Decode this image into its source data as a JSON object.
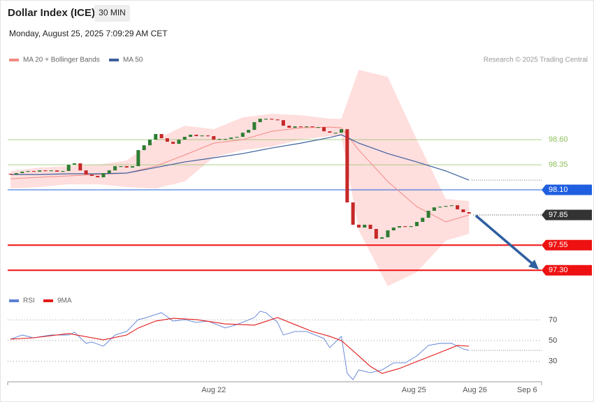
{
  "header": {
    "title": "Dollar Index (ICE)",
    "interval": "30 MIN",
    "timestamp": "Monday, August 25, 2025 7:09:29 AM CET"
  },
  "chart_data": [
    {
      "type": "candlestick",
      "credit": "Research © 2025 Trading Central",
      "xlim": [
        -0.5,
        91.5
      ],
      "ylim": [
        97.1,
        99.33
      ],
      "up_color": "#2e7d32",
      "down_color": "#c62828",
      "open": [
        98.26,
        98.253,
        98.267,
        98.281,
        98.288,
        98.281,
        98.294,
        98.288,
        98.294,
        98.281,
        98.288,
        98.35,
        98.364,
        98.294,
        98.253,
        98.239,
        98.225,
        98.267,
        98.294,
        98.336,
        98.336,
        98.322,
        98.336,
        98.496,
        98.544,
        98.6,
        98.656,
        98.614,
        98.579,
        98.558,
        98.6,
        98.628,
        98.649,
        98.635,
        98.642,
        98.635,
        98.6,
        98.607,
        98.607,
        98.621,
        98.628,
        98.669,
        98.697,
        98.774,
        98.808,
        98.808,
        98.801,
        98.794,
        98.739,
        98.718,
        98.732,
        98.725,
        98.732,
        98.725,
        98.725,
        98.683,
        98.669,
        98.669,
        98.704,
        97.975,
        97.753,
        97.725,
        97.753,
        97.711,
        97.614,
        97.628,
        97.697,
        97.725,
        97.739,
        97.732,
        97.739,
        97.781,
        97.822,
        97.892,
        97.926,
        97.933,
        97.94,
        97.947,
        97.906,
        97.878
      ],
      "close": [
        98.253,
        98.267,
        98.281,
        98.288,
        98.281,
        98.294,
        98.288,
        98.294,
        98.281,
        98.288,
        98.35,
        98.364,
        98.294,
        98.253,
        98.239,
        98.225,
        98.267,
        98.294,
        98.336,
        98.336,
        98.322,
        98.336,
        98.496,
        98.544,
        98.6,
        98.656,
        98.614,
        98.579,
        98.558,
        98.6,
        98.628,
        98.649,
        98.635,
        98.642,
        98.635,
        98.6,
        98.607,
        98.607,
        98.621,
        98.628,
        98.669,
        98.697,
        98.774,
        98.808,
        98.808,
        98.801,
        98.794,
        98.739,
        98.718,
        98.732,
        98.725,
        98.732,
        98.725,
        98.725,
        98.683,
        98.669,
        98.669,
        98.704,
        97.975,
        97.753,
        97.725,
        97.753,
        97.711,
        97.614,
        97.628,
        97.697,
        97.725,
        97.739,
        97.732,
        97.739,
        97.781,
        97.822,
        97.892,
        97.926,
        97.933,
        97.94,
        97.947,
        97.906,
        97.878,
        97.864
      ],
      "series": [
        {
          "name": "MA 20 + Bollinger Bands",
          "color": "#f28b82",
          "band_color": "#ffdede",
          "x": [
            0,
            5,
            10,
            15,
            20,
            25,
            30,
            35,
            40,
            45,
            50,
            55,
            57,
            60,
            65,
            70,
            75,
            79
          ],
          "values": [
            98.211,
            98.225,
            98.239,
            98.253,
            98.267,
            98.336,
            98.447,
            98.565,
            98.6,
            98.683,
            98.718,
            98.725,
            98.718,
            98.496,
            98.183,
            97.933,
            97.781,
            97.85
          ],
          "upper": [
            98.288,
            98.322,
            98.336,
            98.35,
            98.392,
            98.6,
            98.739,
            98.704,
            98.822,
            98.857,
            98.843,
            98.808,
            98.808,
            99.294,
            99.225,
            98.6,
            98.01,
            97.989
          ],
          "lower": [
            98.114,
            98.128,
            98.156,
            98.156,
            98.128,
            98.114,
            98.183,
            98.426,
            98.496,
            98.531,
            98.6,
            98.635,
            98.635,
            97.697,
            97.142,
            97.281,
            97.594,
            97.663
          ]
        },
        {
          "name": "MA 50",
          "color": "#3c5f9c",
          "x": [
            0,
            5,
            10,
            15,
            20,
            25,
            30,
            35,
            40,
            45,
            50,
            55,
            57,
            60,
            65,
            70,
            75,
            79
          ],
          "values": [
            98.253,
            98.253,
            98.26,
            98.26,
            98.267,
            98.322,
            98.378,
            98.419,
            98.461,
            98.517,
            98.565,
            98.621,
            98.649,
            98.565,
            98.461,
            98.378,
            98.288,
            98.197
          ]
        }
      ],
      "levels": [
        {
          "value": 98.6,
          "label": "98.60",
          "color": "#8bbf5a",
          "style": "line",
          "tag": false
        },
        {
          "value": 98.35,
          "label": "98.35",
          "color": "#8bbf5a",
          "style": "line",
          "tag": false
        },
        {
          "value": 98.1,
          "label": "98.10",
          "color": "#1f5fe0",
          "style": "line",
          "tag": true
        },
        {
          "value": 97.85,
          "label": "97.85",
          "color": "#333333",
          "style": "dotted",
          "tag": true
        },
        {
          "value": 97.55,
          "label": "97.55",
          "color": "#ee1111",
          "style": "line",
          "tag": true
        },
        {
          "value": 97.3,
          "label": "97.30",
          "color": "#ee1111",
          "style": "line",
          "tag": true
        }
      ]
    },
    {
      "type": "line",
      "xlim": [
        -0.5,
        91.5
      ],
      "ylim": [
        5,
        85
      ],
      "yticks": [
        70,
        50,
        30
      ],
      "xticks": [
        {
          "value": 35,
          "label": "Aug 22"
        },
        {
          "value": 69.5,
          "label": "Aug 25"
        },
        {
          "value": 80,
          "label": "Aug 26"
        },
        {
          "value": 89,
          "label": "Sep 6"
        }
      ],
      "series": [
        {
          "name": "RSI",
          "color": "#5b7fd6",
          "x": [
            0,
            2,
            4,
            7,
            10,
            11,
            13,
            14,
            16,
            18,
            20,
            22,
            23,
            26,
            28,
            30,
            32,
            34,
            37,
            39,
            42,
            43,
            44,
            46,
            47,
            49,
            51,
            54,
            55,
            57,
            58,
            59,
            60,
            62,
            64,
            66,
            68,
            70,
            72,
            74,
            76,
            78,
            79
          ],
          "values": [
            51.4,
            55.4,
            52.7,
            55.4,
            55.4,
            58.1,
            47.3,
            48.6,
            44.6,
            55.4,
            58.8,
            70.3,
            71.6,
            77.0,
            68.9,
            70.3,
            67.6,
            68.9,
            62.2,
            65.5,
            72.3,
            78.4,
            77.0,
            67.6,
            55.4,
            58.8,
            58.8,
            52.0,
            43.2,
            54.1,
            18.2,
            12.2,
            21.6,
            18.9,
            21.6,
            28.4,
            28.4,
            35.1,
            45.3,
            47.3,
            47.3,
            41.9,
            40.5
          ]
        },
        {
          "name": "9MA",
          "color": "#e31b1b",
          "x": [
            0,
            4,
            10,
            16,
            20,
            22,
            25,
            28,
            32,
            37,
            42,
            46,
            49,
            52,
            55,
            57,
            60,
            62,
            64,
            67,
            70,
            74,
            77,
            79
          ],
          "values": [
            51.4,
            52.7,
            56.8,
            50.7,
            55.4,
            62.2,
            68.9,
            71.6,
            70.3,
            66.2,
            64.9,
            72.3,
            65.5,
            58.8,
            54.1,
            50.0,
            35.1,
            25.0,
            18.2,
            23.0,
            29.7,
            38.5,
            45.3,
            44.6
          ]
        }
      ]
    }
  ]
}
